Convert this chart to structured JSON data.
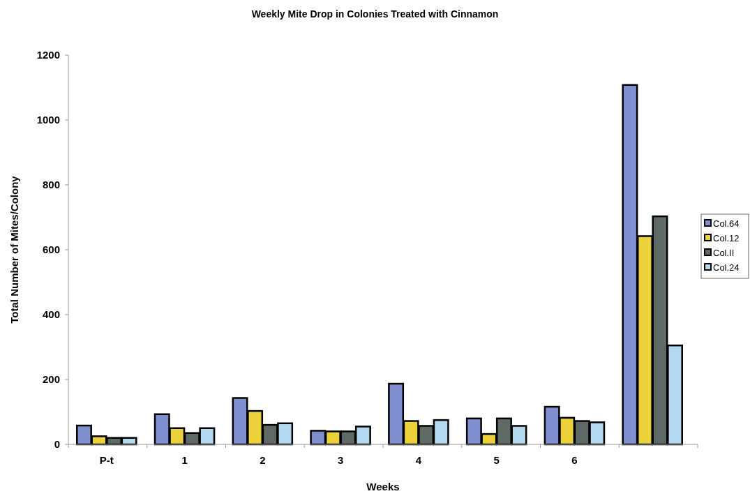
{
  "chart_data": {
    "type": "bar",
    "title": "Weekly Mite Drop in Colonies Treated with Cinnamon",
    "xlabel": "Weeks",
    "ylabel": "Total Number of Mites/Colony",
    "categories": [
      "P-t",
      "1",
      "2",
      "3",
      "4",
      "5",
      "6",
      null
    ],
    "series": [
      {
        "name": "Col.64",
        "color": "#7f8fd0",
        "values": [
          58,
          93,
          143,
          42,
          187,
          80,
          116,
          1108
        ]
      },
      {
        "name": "Col.12",
        "color": "#ecd23a",
        "values": [
          25,
          50,
          103,
          40,
          72,
          32,
          82,
          642
        ]
      },
      {
        "name": "Col.II",
        "color": "#5f6a66",
        "values": [
          20,
          35,
          60,
          40,
          57,
          80,
          72,
          703
        ]
      },
      {
        "name": "Col.24",
        "color": "#b4d8f0",
        "values": [
          20,
          50,
          65,
          55,
          75,
          57,
          68,
          305
        ]
      }
    ],
    "ylim": [
      0,
      1200
    ],
    "yticks": [
      0,
      200,
      400,
      600,
      800,
      1000,
      1200
    ],
    "grid": false,
    "legend": "right"
  }
}
